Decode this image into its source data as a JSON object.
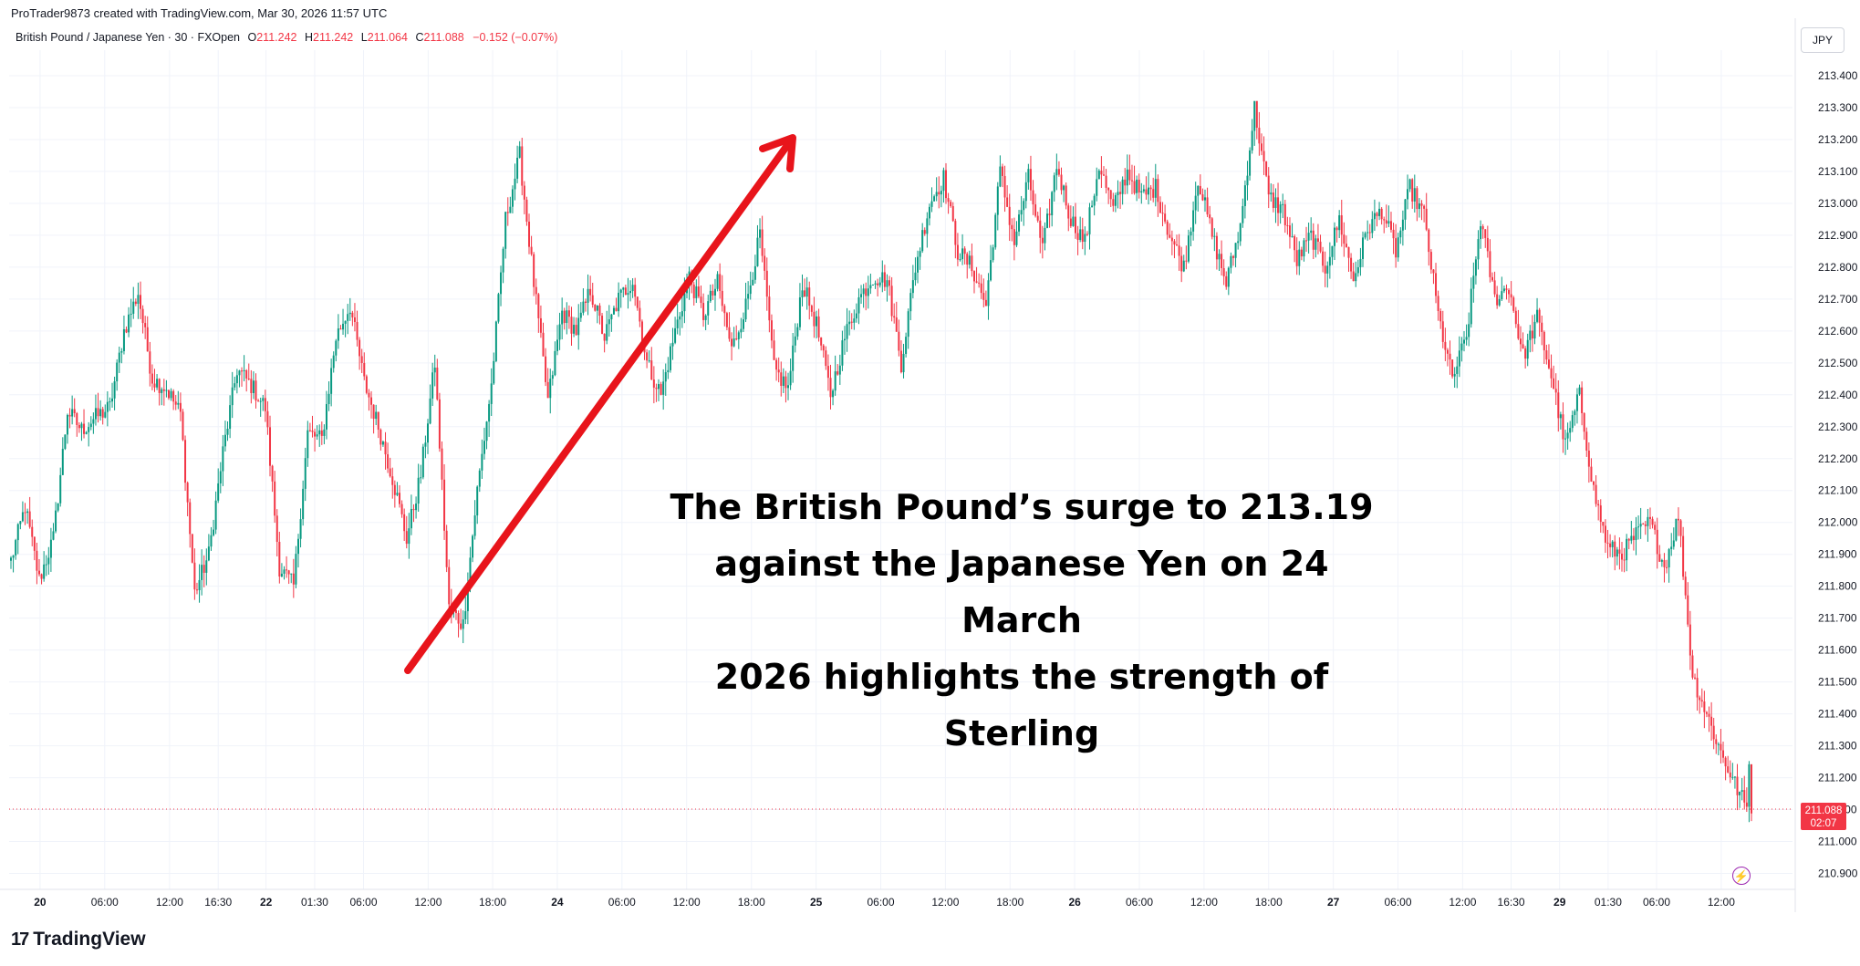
{
  "header": {
    "credit": "ProTrader9873 created with TradingView.com, Mar 30, 2026 11:57 UTC"
  },
  "legend": {
    "symbol": "British Pound / Japanese Yen · 30 · FXOpen",
    "o_label": "O",
    "o_value": "211.242",
    "h_label": "H",
    "h_value": "211.242",
    "l_label": "L",
    "l_value": "211.064",
    "c_label": "C",
    "c_value": "211.088",
    "change": "−0.152 (−0.07%)"
  },
  "currency": "JPY",
  "annotation": {
    "line1": "The British Pound’s surge to 213.19",
    "line2": "against the Japanese Yen on 24 March",
    "line3": "2026 highlights the strength of Sterling"
  },
  "last_price": {
    "price": "211.088",
    "countdown": "02:07"
  },
  "brand": "TradingView",
  "colors": {
    "up": "#089981",
    "down": "#f23645",
    "arrow": "#e8141b",
    "grid": "#f0f3fa",
    "text": "#131722"
  },
  "icons": {
    "logo": "tradingview-logo-icon",
    "alert": "lightning-icon"
  },
  "chart_data": {
    "type": "candlestick",
    "symbol": "British Pound / Japanese Yen",
    "interval": "30",
    "y_ticks": [
      "213.400",
      "213.300",
      "213.200",
      "213.100",
      "213.000",
      "212.900",
      "212.800",
      "212.700",
      "212.600",
      "212.500",
      "212.400",
      "212.300",
      "212.200",
      "212.100",
      "212.000",
      "211.900",
      "211.800",
      "211.700",
      "211.600",
      "211.500",
      "211.400",
      "211.300",
      "211.200",
      "211.100",
      "211.000",
      "210.900"
    ],
    "ylim": [
      210.85,
      213.48
    ],
    "x_ticks": [
      {
        "label": "20",
        "bold": true,
        "pos": 0.018
      },
      {
        "label": "06:00",
        "bold": false,
        "pos": 0.0556
      },
      {
        "label": "12:00",
        "bold": false,
        "pos": 0.0933
      },
      {
        "label": "16:30",
        "bold": false,
        "pos": 0.1216
      },
      {
        "label": "22",
        "bold": true,
        "pos": 0.1494
      },
      {
        "label": "01:30",
        "bold": false,
        "pos": 0.1777
      },
      {
        "label": "06:00",
        "bold": false,
        "pos": 0.2061
      },
      {
        "label": "12:00",
        "bold": false,
        "pos": 0.2437
      },
      {
        "label": "18:00",
        "bold": false,
        "pos": 0.2812
      },
      {
        "label": "24",
        "bold": true,
        "pos": 0.3188
      },
      {
        "label": "06:00",
        "bold": false,
        "pos": 0.3564
      },
      {
        "label": "12:00",
        "bold": false,
        "pos": 0.394
      },
      {
        "label": "18:00",
        "bold": false,
        "pos": 0.4317
      },
      {
        "label": "25",
        "bold": true,
        "pos": 0.4693
      },
      {
        "label": "06:00",
        "bold": false,
        "pos": 0.5069
      },
      {
        "label": "12:00",
        "bold": false,
        "pos": 0.5445
      },
      {
        "label": "18:00",
        "bold": false,
        "pos": 0.5821
      },
      {
        "label": "26",
        "bold": true,
        "pos": 0.6197
      },
      {
        "label": "06:00",
        "bold": false,
        "pos": 0.6573
      },
      {
        "label": "12:00",
        "bold": false,
        "pos": 0.6949
      },
      {
        "label": "18:00",
        "bold": false,
        "pos": 0.7325
      },
      {
        "label": "27",
        "bold": true,
        "pos": 0.7701
      },
      {
        "label": "06:00",
        "bold": false,
        "pos": 0.8077
      },
      {
        "label": "12:00",
        "bold": false,
        "pos": 0.8453
      },
      {
        "label": "16:30",
        "bold": false,
        "pos": 0.8735
      },
      {
        "label": "29",
        "bold": true,
        "pos": 0.9017
      },
      {
        "label": "01:30",
        "bold": false,
        "pos": 0.9299
      },
      {
        "label": "06:00",
        "bold": false,
        "pos": 0.9581
      },
      {
        "label": "12:00",
        "bold": false,
        "pos": 0.9957
      }
    ],
    "closes": [
      211.88,
      212.05,
      211.82,
      211.95,
      212.35,
      212.29,
      212.33,
      212.36,
      212.6,
      212.72,
      212.45,
      212.42,
      212.34,
      211.78,
      211.9,
      212.22,
      212.48,
      212.43,
      212.36,
      211.86,
      211.8,
      212.28,
      212.26,
      212.58,
      212.68,
      212.44,
      212.3,
      212.14,
      211.95,
      212.15,
      212.5,
      211.73,
      211.68,
      212.1,
      212.43,
      212.95,
      213.15,
      212.75,
      212.38,
      212.66,
      212.6,
      212.73,
      212.58,
      212.7,
      212.76,
      212.5,
      212.4,
      212.6,
      212.77,
      212.65,
      212.75,
      212.54,
      212.68,
      212.9,
      212.48,
      212.42,
      212.75,
      212.62,
      212.4,
      212.58,
      212.7,
      212.77,
      212.76,
      212.5,
      212.8,
      213.0,
      213.08,
      212.85,
      212.8,
      212.68,
      213.1,
      212.88,
      213.08,
      212.85,
      213.12,
      212.95,
      212.88,
      213.12,
      212.98,
      213.1,
      213.02,
      213.05,
      212.9,
      212.8,
      213.08,
      212.9,
      212.75,
      212.93,
      213.3,
      213.02,
      212.98,
      212.82,
      212.9,
      212.8,
      212.95,
      212.76,
      212.92,
      212.98,
      212.85,
      213.05,
      212.96,
      212.65,
      212.45,
      212.58,
      212.95,
      212.7,
      212.74,
      212.52,
      212.64,
      212.46,
      212.24,
      212.4,
      212.1,
      211.92,
      211.9,
      211.96,
      212.0,
      211.86,
      212.02,
      211.52,
      211.4,
      211.28,
      211.18,
      211.09
    ],
    "range": {
      "open": 211.88,
      "close": 211.088,
      "high": 213.31,
      "low": 211.06
    },
    "last": {
      "open": 211.242,
      "high": 211.242,
      "low": 211.064,
      "close": 211.088
    }
  }
}
